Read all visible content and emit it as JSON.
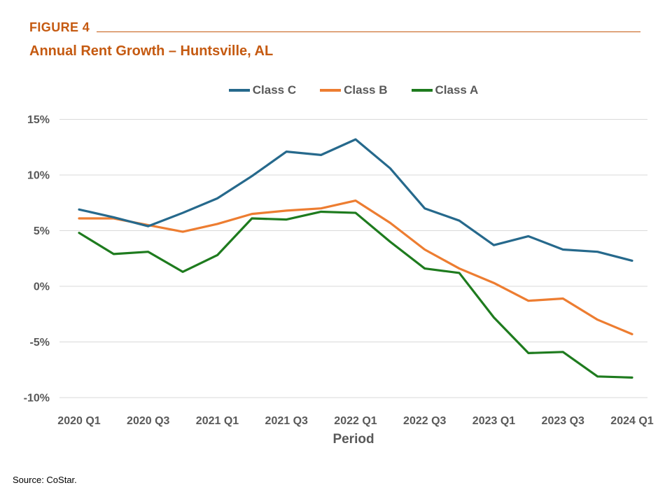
{
  "header": {
    "figure_label": "FIGURE 4",
    "title": "Annual Rent Growth – Huntsville, AL"
  },
  "source": "Source: CoStar.",
  "colors": {
    "accent_orange_title": "#C55A11",
    "axis_text_gray": "#595959",
    "gridline_gray": "#D9D9D9"
  },
  "chart_data": {
    "type": "line",
    "title": "Annual Rent Growth – Huntsville, AL",
    "xlabel": "Period",
    "ylabel": "",
    "ylim": [
      -10,
      15
    ],
    "ytick_step": 5,
    "ytick_labels": [
      "15%",
      "10%",
      "5%",
      "0%",
      "-5%",
      "-10%"
    ],
    "grid": "horizontal-only",
    "legend_position": "top-center",
    "categories": [
      "2020 Q1",
      "2020 Q2",
      "2020 Q3",
      "2020 Q4",
      "2021 Q1",
      "2021 Q2",
      "2021 Q3",
      "2021 Q4",
      "2022 Q1",
      "2022 Q2",
      "2022 Q3",
      "2022 Q4",
      "2023 Q1",
      "2023 Q2",
      "2023 Q3",
      "2023 Q4",
      "2024 Q1"
    ],
    "xtick_shown_labels": [
      "2020 Q1",
      "2020 Q3",
      "2021 Q1",
      "2021 Q3",
      "2022 Q1",
      "2022 Q3",
      "2023 Q1",
      "2023 Q3",
      "2024 Q1"
    ],
    "series": [
      {
        "name": "Class C",
        "color": "#26698C",
        "values": [
          6.9,
          6.2,
          5.4,
          6.6,
          7.9,
          9.9,
          12.1,
          11.8,
          13.2,
          10.6,
          7.0,
          5.9,
          3.7,
          4.5,
          3.3,
          3.1,
          2.3
        ]
      },
      {
        "name": "Class B",
        "color": "#ED7D31",
        "values": [
          6.1,
          6.1,
          5.5,
          4.9,
          5.6,
          6.5,
          6.8,
          7.0,
          7.7,
          5.7,
          3.3,
          1.6,
          0.3,
          -1.3,
          -1.1,
          -3.0,
          -4.3
        ]
      },
      {
        "name": "Class A",
        "color": "#1E7B1E",
        "values": [
          4.8,
          2.9,
          3.1,
          1.3,
          2.8,
          6.1,
          6.0,
          6.7,
          6.6,
          4.0,
          1.6,
          1.2,
          -2.8,
          -6.0,
          -5.9,
          -8.1,
          -8.2
        ]
      }
    ]
  }
}
